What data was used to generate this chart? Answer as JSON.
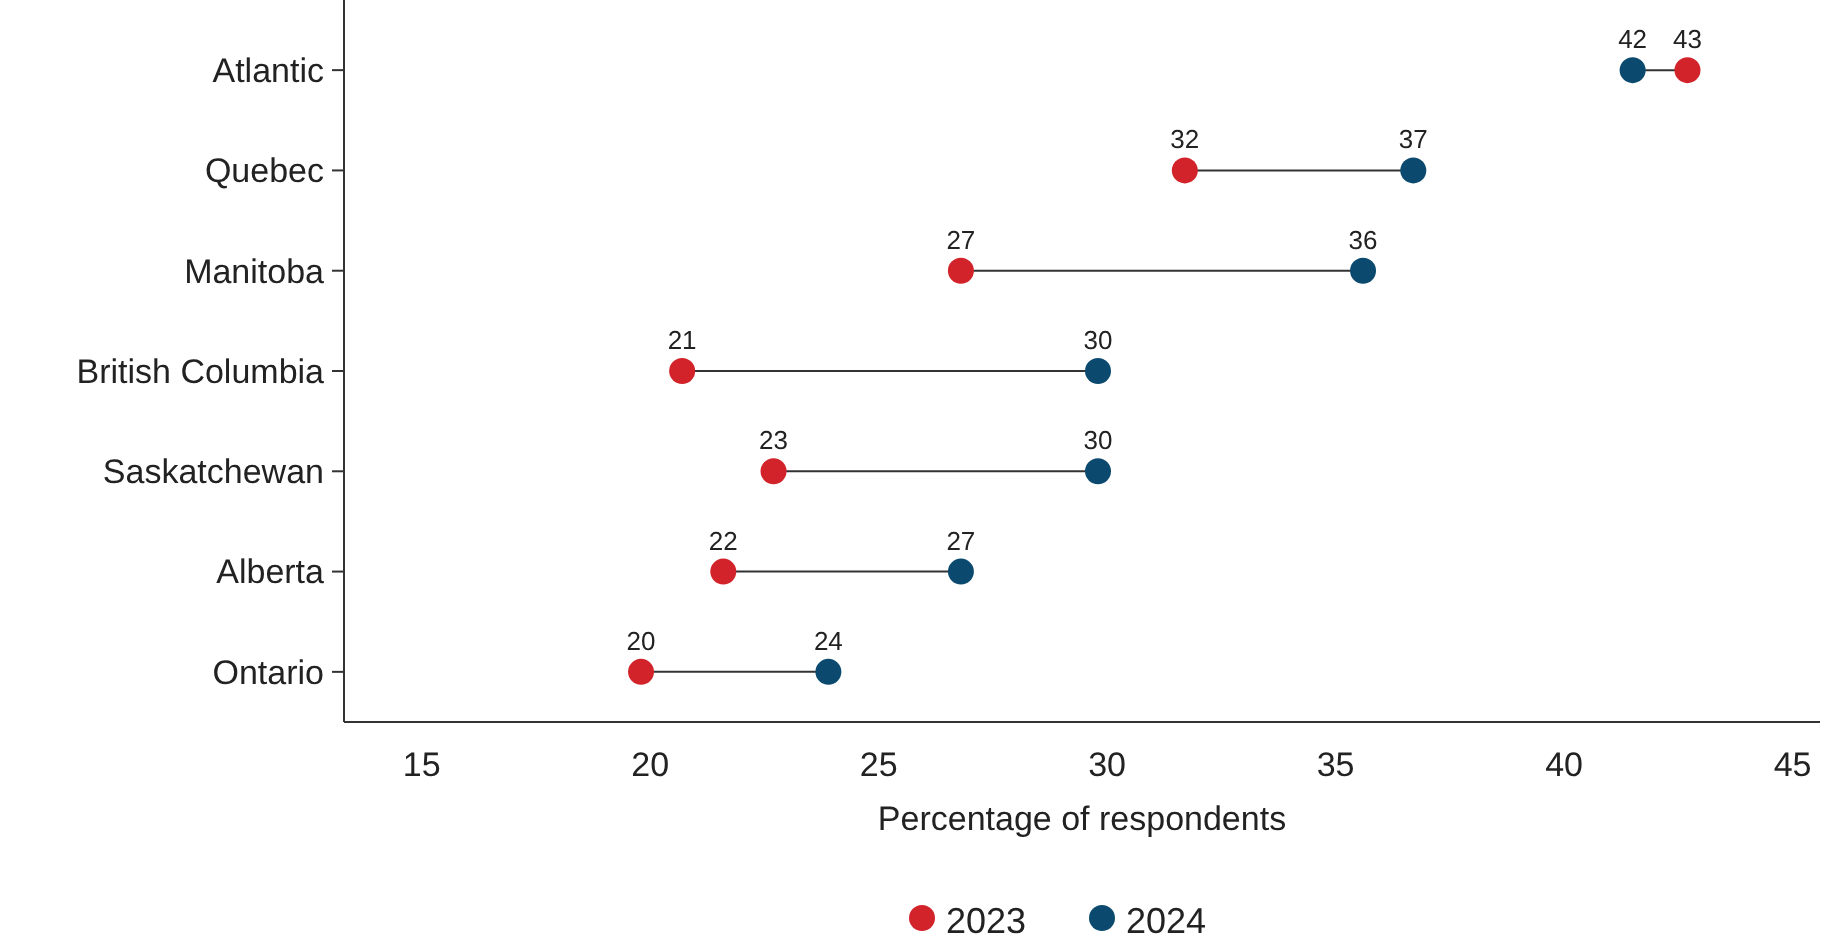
{
  "chart_data": {
    "type": "scatter",
    "orientation": "horizontal",
    "categories": [
      "Atlantic",
      "Quebec",
      "Manitoba",
      "British Columbia",
      "Saskatchewan",
      "Alberta",
      "Ontario"
    ],
    "series": [
      {
        "name": "2023",
        "color": "#d2232a",
        "values": [
          42.7,
          31.7,
          26.8,
          20.7,
          22.7,
          21.6,
          19.8
        ],
        "value_labels": [
          "43",
          "32",
          "27",
          "21",
          "23",
          "22",
          "20"
        ]
      },
      {
        "name": "2024",
        "color": "#0b4a6e",
        "values": [
          41.5,
          36.7,
          35.6,
          29.8,
          29.8,
          26.8,
          23.9
        ],
        "value_labels": [
          "42",
          "37",
          "36",
          "30",
          "30",
          "27",
          "24"
        ]
      }
    ],
    "xlim": [
      13.3,
      45.6
    ],
    "xticks": [
      15,
      20,
      25,
      30,
      35,
      40,
      45
    ],
    "xlabel": "Percentage of respondents",
    "legend": "bottom",
    "marker": "circle",
    "grid": false
  }
}
